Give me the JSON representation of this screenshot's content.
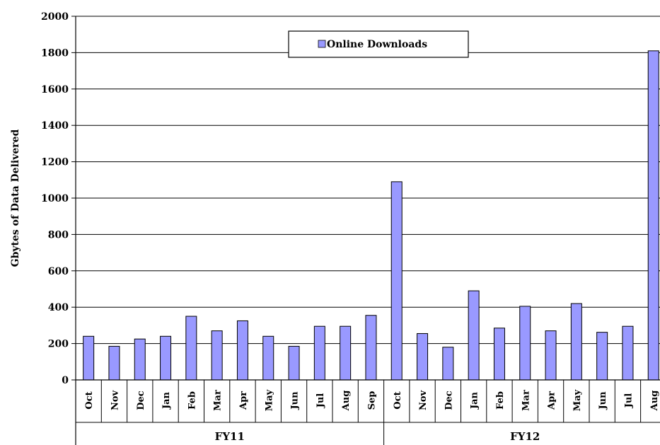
{
  "chart_data": {
    "type": "bar",
    "ylabel": "Gbytes of Data Delivered",
    "ylim": [
      0,
      2000
    ],
    "yticks": [
      0,
      200,
      400,
      600,
      800,
      1000,
      1200,
      1400,
      1600,
      1800,
      2000
    ],
    "grid": true,
    "legend_position": "top-center",
    "bar_color": "#9999ff",
    "series": [
      {
        "name": "Online Downloads",
        "values": [
          240,
          185,
          225,
          240,
          350,
          270,
          325,
          240,
          185,
          295,
          295,
          355,
          1090,
          255,
          180,
          490,
          285,
          405,
          270,
          420,
          262,
          295,
          1810
        ]
      }
    ],
    "categories": [
      "Oct",
      "Nov",
      "Dec",
      "Jan",
      "Feb",
      "Mar",
      "Apr",
      "May",
      "Jun",
      "Jul",
      "Aug",
      "Sep",
      "Oct",
      "Nov",
      "Dec",
      "Jan",
      "Feb",
      "Mar",
      "Apr",
      "May",
      "Jun",
      "Jul",
      "Aug"
    ],
    "groups": [
      {
        "label": "FY11",
        "count": 12
      },
      {
        "label": "FY12",
        "count": 11
      }
    ]
  }
}
